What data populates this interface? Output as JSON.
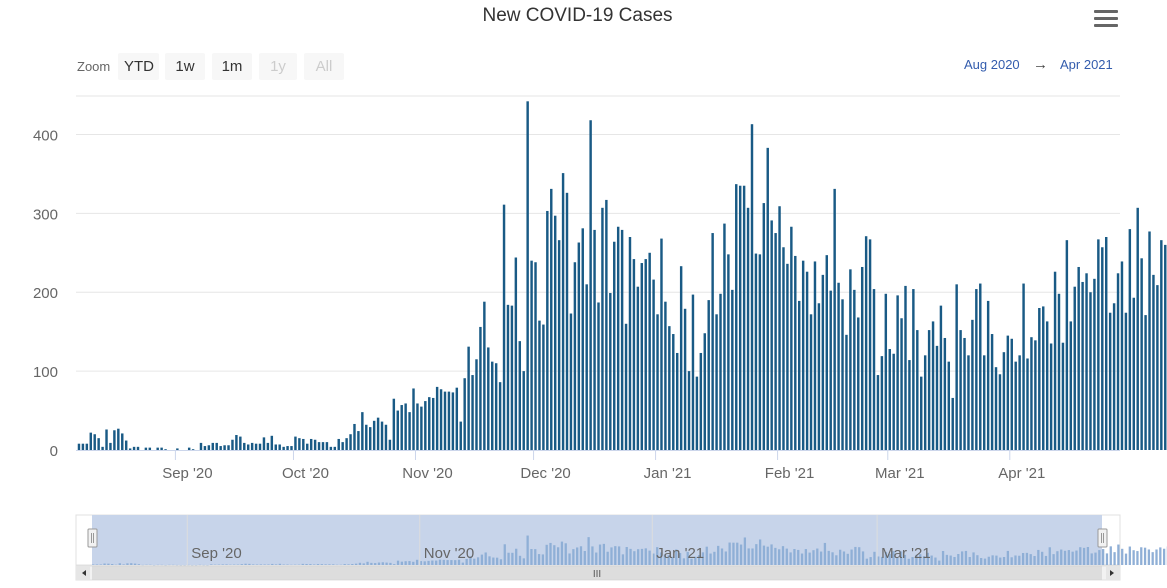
{
  "chart_data": {
    "type": "bar",
    "title": "New COVID-19 Cases",
    "x_start": "2020-08-07",
    "x_end": "2021-04-28",
    "xlabel": "",
    "ylabel": "",
    "ylim": [
      0,
      450
    ],
    "yticks": [
      0,
      100,
      200,
      300,
      400
    ],
    "xticks": [
      {
        "label": "Sep '20",
        "date": "2020-09-01"
      },
      {
        "label": "Oct '20",
        "date": "2020-10-01"
      },
      {
        "label": "Nov '20",
        "date": "2020-11-01"
      },
      {
        "label": "Dec '20",
        "date": "2020-12-01"
      },
      {
        "label": "Jan '21",
        "date": "2021-01-01"
      },
      {
        "label": "Feb '21",
        "date": "2021-02-01"
      },
      {
        "label": "Mar '21",
        "date": "2021-03-01"
      },
      {
        "label": "Apr '21",
        "date": "2021-04-01"
      }
    ],
    "navigator_labels": [
      {
        "label": "Sep '20",
        "date": "2020-09-01"
      },
      {
        "label": "Nov '20",
        "date": "2020-11-01"
      },
      {
        "label": "Jan '21",
        "date": "2021-01-01"
      },
      {
        "label": "Mar '21",
        "date": "2021-03-01"
      }
    ],
    "grid": true,
    "legend": "none",
    "values": [
      8,
      8,
      8,
      22,
      20,
      15,
      4,
      26,
      9,
      25,
      27,
      21,
      12,
      2,
      4,
      4,
      0,
      3,
      3,
      0,
      3,
      3,
      1,
      0,
      0,
      2,
      0,
      0,
      3,
      1,
      0,
      9,
      5,
      6,
      9,
      9,
      5,
      6,
      6,
      13,
      19,
      17,
      9,
      7,
      9,
      8,
      8,
      16,
      9,
      18,
      7,
      7,
      4,
      5,
      5,
      17,
      15,
      14,
      8,
      14,
      13,
      10,
      10,
      10,
      4,
      4,
      14,
      10,
      15,
      20,
      33,
      24,
      48,
      32,
      29,
      37,
      41,
      36,
      32,
      13,
      65,
      50,
      57,
      59,
      48,
      78,
      59,
      55,
      62,
      67,
      66,
      80,
      77,
      74,
      74,
      73,
      79,
      36,
      91,
      131,
      95,
      115,
      156,
      188,
      130,
      112,
      110,
      86,
      311,
      184,
      183,
      244,
      138,
      100,
      442,
      240,
      238,
      164,
      159,
      303,
      331,
      297,
      266,
      351,
      326,
      173,
      238,
      263,
      281,
      210,
      418,
      279,
      187,
      307,
      317,
      199,
      264,
      283,
      279,
      160,
      270,
      242,
      207,
      237,
      242,
      250,
      216,
      172,
      268,
      188,
      157,
      147,
      123,
      233,
      179,
      100,
      197,
      93,
      123,
      148,
      190,
      275,
      172,
      198,
      287,
      248,
      203,
      337,
      335,
      335,
      307,
      413,
      249,
      248,
      313,
      383,
      291,
      275,
      309,
      257,
      236,
      283,
      246,
      189,
      240,
      226,
      172,
      239,
      186,
      222,
      247,
      202,
      331,
      212,
      191,
      146,
      229,
      203,
      168,
      232,
      271,
      267,
      204,
      95,
      119,
      198,
      128,
      122,
      196,
      167,
      208,
      114,
      204,
      152,
      93,
      120,
      152,
      163,
      132,
      183,
      142,
      112,
      66,
      210,
      152,
      142,
      120,
      165,
      204,
      211,
      120,
      189,
      147,
      105,
      96,
      124,
      145,
      141,
      112,
      120,
      211,
      116,
      143,
      139,
      180,
      182,
      163,
      135,
      226,
      198,
      136,
      266,
      163,
      207,
      232,
      213,
      224,
      200,
      217,
      267,
      257,
      270,
      174,
      186,
      224,
      239,
      174,
      280,
      193,
      307,
      243,
      171,
      277,
      222,
      209,
      266,
      260,
      233,
      193,
      233,
      264,
      244,
      278,
      236
    ],
    "colors": {
      "bar": "#195a85",
      "grid": "#e6e6e6",
      "navigator_fill": "#c7d4ea",
      "navigator_bar": "#8fafd6",
      "scrollbar": "#f2f2f2"
    }
  },
  "toolbar": {
    "zoom_label": "Zoom",
    "buttons": [
      {
        "label": "YTD",
        "enabled": true
      },
      {
        "label": "1w",
        "enabled": true
      },
      {
        "label": "1m",
        "enabled": true
      },
      {
        "label": "1y",
        "enabled": false
      },
      {
        "label": "All",
        "enabled": false
      }
    ],
    "range_from": "Aug 2020",
    "range_arrow": "→",
    "range_to": "Apr 2021",
    "menu_icon": "hamburger-menu-icon",
    "scroll_grip": "III"
  }
}
